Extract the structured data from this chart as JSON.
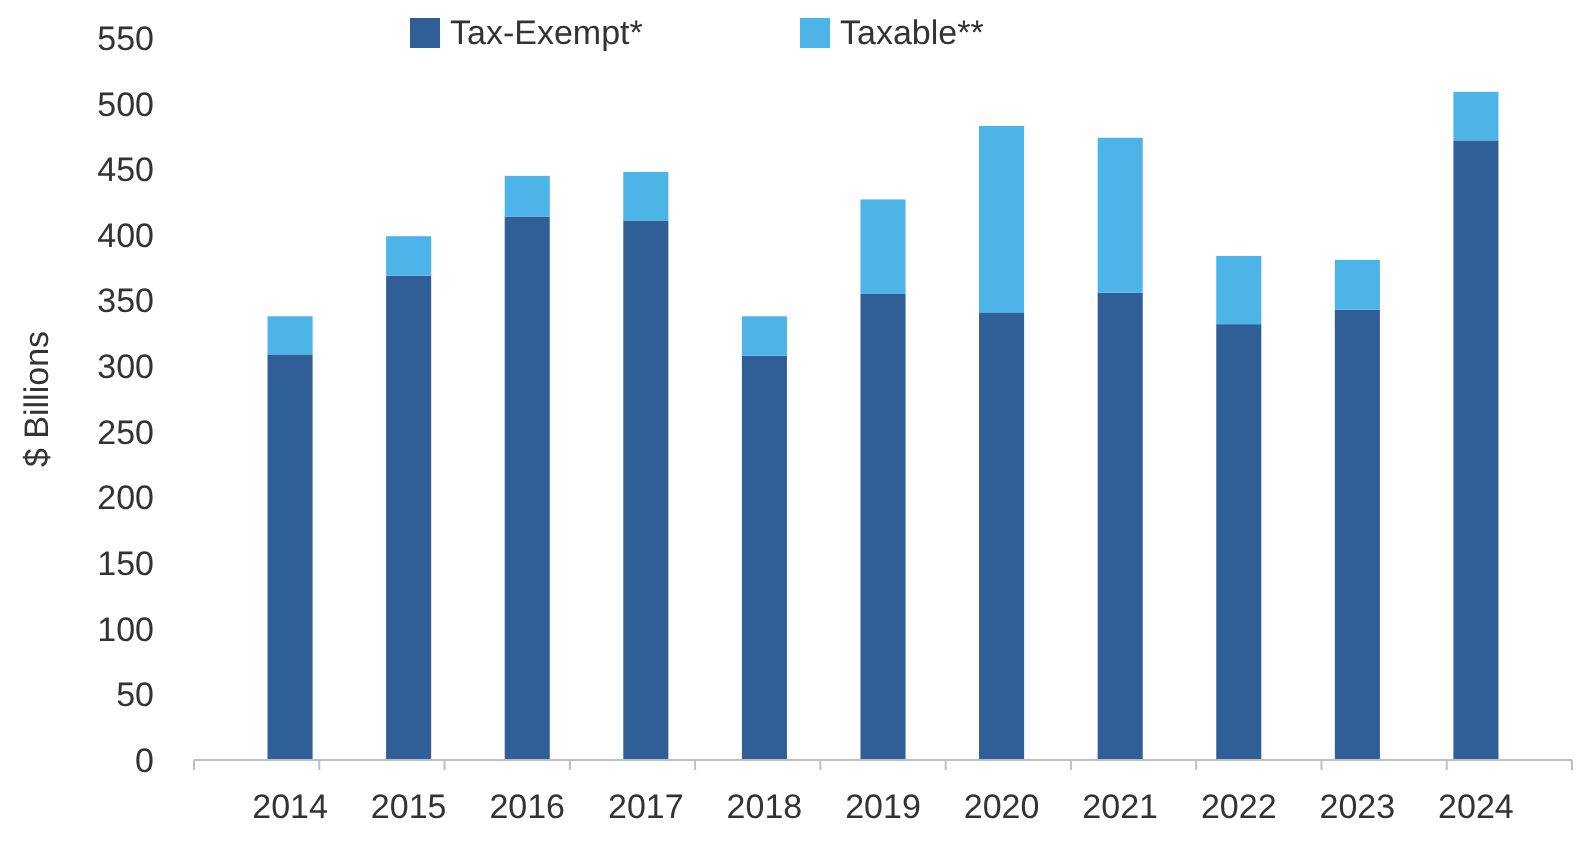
{
  "chart_data": {
    "type": "bar",
    "stacked": true,
    "ylabel": "$ Billions",
    "categories": [
      "2014",
      "2015",
      "2016",
      "2017",
      "2018",
      "2019",
      "2020",
      "2021",
      "2022",
      "2023",
      "2024"
    ],
    "series": [
      {
        "name": "Tax-Exempt*",
        "color": "#2f5f96",
        "values": [
          309,
          369,
          414,
          411,
          308,
          355,
          341,
          356,
          332,
          343,
          472
        ]
      },
      {
        "name": "Taxable**",
        "color": "#4cb4e6",
        "values": [
          29,
          30,
          31,
          37,
          30,
          72,
          142,
          118,
          52,
          38,
          37
        ]
      }
    ],
    "ylim": [
      0,
      550
    ],
    "yticks": [
      0,
      50,
      100,
      150,
      200,
      250,
      300,
      350,
      400,
      450,
      500,
      550
    ],
    "grid": false,
    "legend": "top"
  }
}
